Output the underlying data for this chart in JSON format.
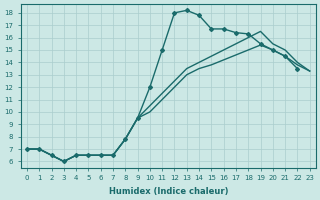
{
  "xlabel": "Humidex (Indice chaleur)",
  "xlim": [
    -0.5,
    23.5
  ],
  "ylim": [
    5.5,
    18.7
  ],
  "xticks": [
    0,
    1,
    2,
    3,
    4,
    5,
    6,
    7,
    8,
    9,
    10,
    11,
    12,
    13,
    14,
    15,
    16,
    17,
    18,
    19,
    20,
    21,
    22,
    23
  ],
  "yticks": [
    6,
    7,
    8,
    9,
    10,
    11,
    12,
    13,
    14,
    15,
    16,
    17,
    18
  ],
  "bg_color": "#cce8e5",
  "line_color": "#1a6b6b",
  "grid_color": "#aacece",
  "line1_x": [
    0,
    1,
    2,
    3,
    4,
    5,
    6,
    7,
    8,
    9,
    10,
    11,
    12,
    13,
    14,
    15,
    16,
    17,
    18,
    19,
    20,
    21,
    22
  ],
  "line1_y": [
    7.0,
    7.0,
    6.5,
    6.0,
    6.5,
    6.5,
    6.5,
    6.5,
    7.8,
    9.5,
    12.0,
    15.0,
    18.0,
    18.2,
    17.8,
    16.7,
    16.7,
    16.4,
    16.3,
    15.5,
    15.0,
    14.5,
    13.5
  ],
  "line2_x": [
    0,
    1,
    2,
    3,
    4,
    5,
    6,
    7,
    8,
    9,
    10,
    11,
    12,
    13,
    14,
    15,
    16,
    17,
    18,
    19,
    20,
    21,
    22,
    23
  ],
  "line2_y": [
    7.0,
    7.0,
    6.5,
    6.0,
    6.5,
    6.5,
    6.5,
    6.5,
    7.8,
    9.5,
    10.5,
    11.5,
    12.5,
    13.5,
    14.0,
    14.5,
    15.0,
    15.5,
    16.0,
    16.5,
    15.5,
    15.0,
    14.0,
    13.3
  ],
  "line3_x": [
    0,
    1,
    2,
    3,
    4,
    5,
    6,
    7,
    8,
    9,
    10,
    11,
    12,
    13,
    14,
    15,
    16,
    17,
    18,
    19,
    20,
    21,
    22,
    23
  ],
  "line3_y": [
    7.0,
    7.0,
    6.5,
    6.0,
    6.5,
    6.5,
    6.5,
    6.5,
    7.8,
    9.5,
    10.0,
    11.0,
    12.0,
    13.0,
    13.5,
    13.8,
    14.2,
    14.6,
    15.0,
    15.4,
    15.0,
    14.5,
    13.8,
    13.3
  ]
}
